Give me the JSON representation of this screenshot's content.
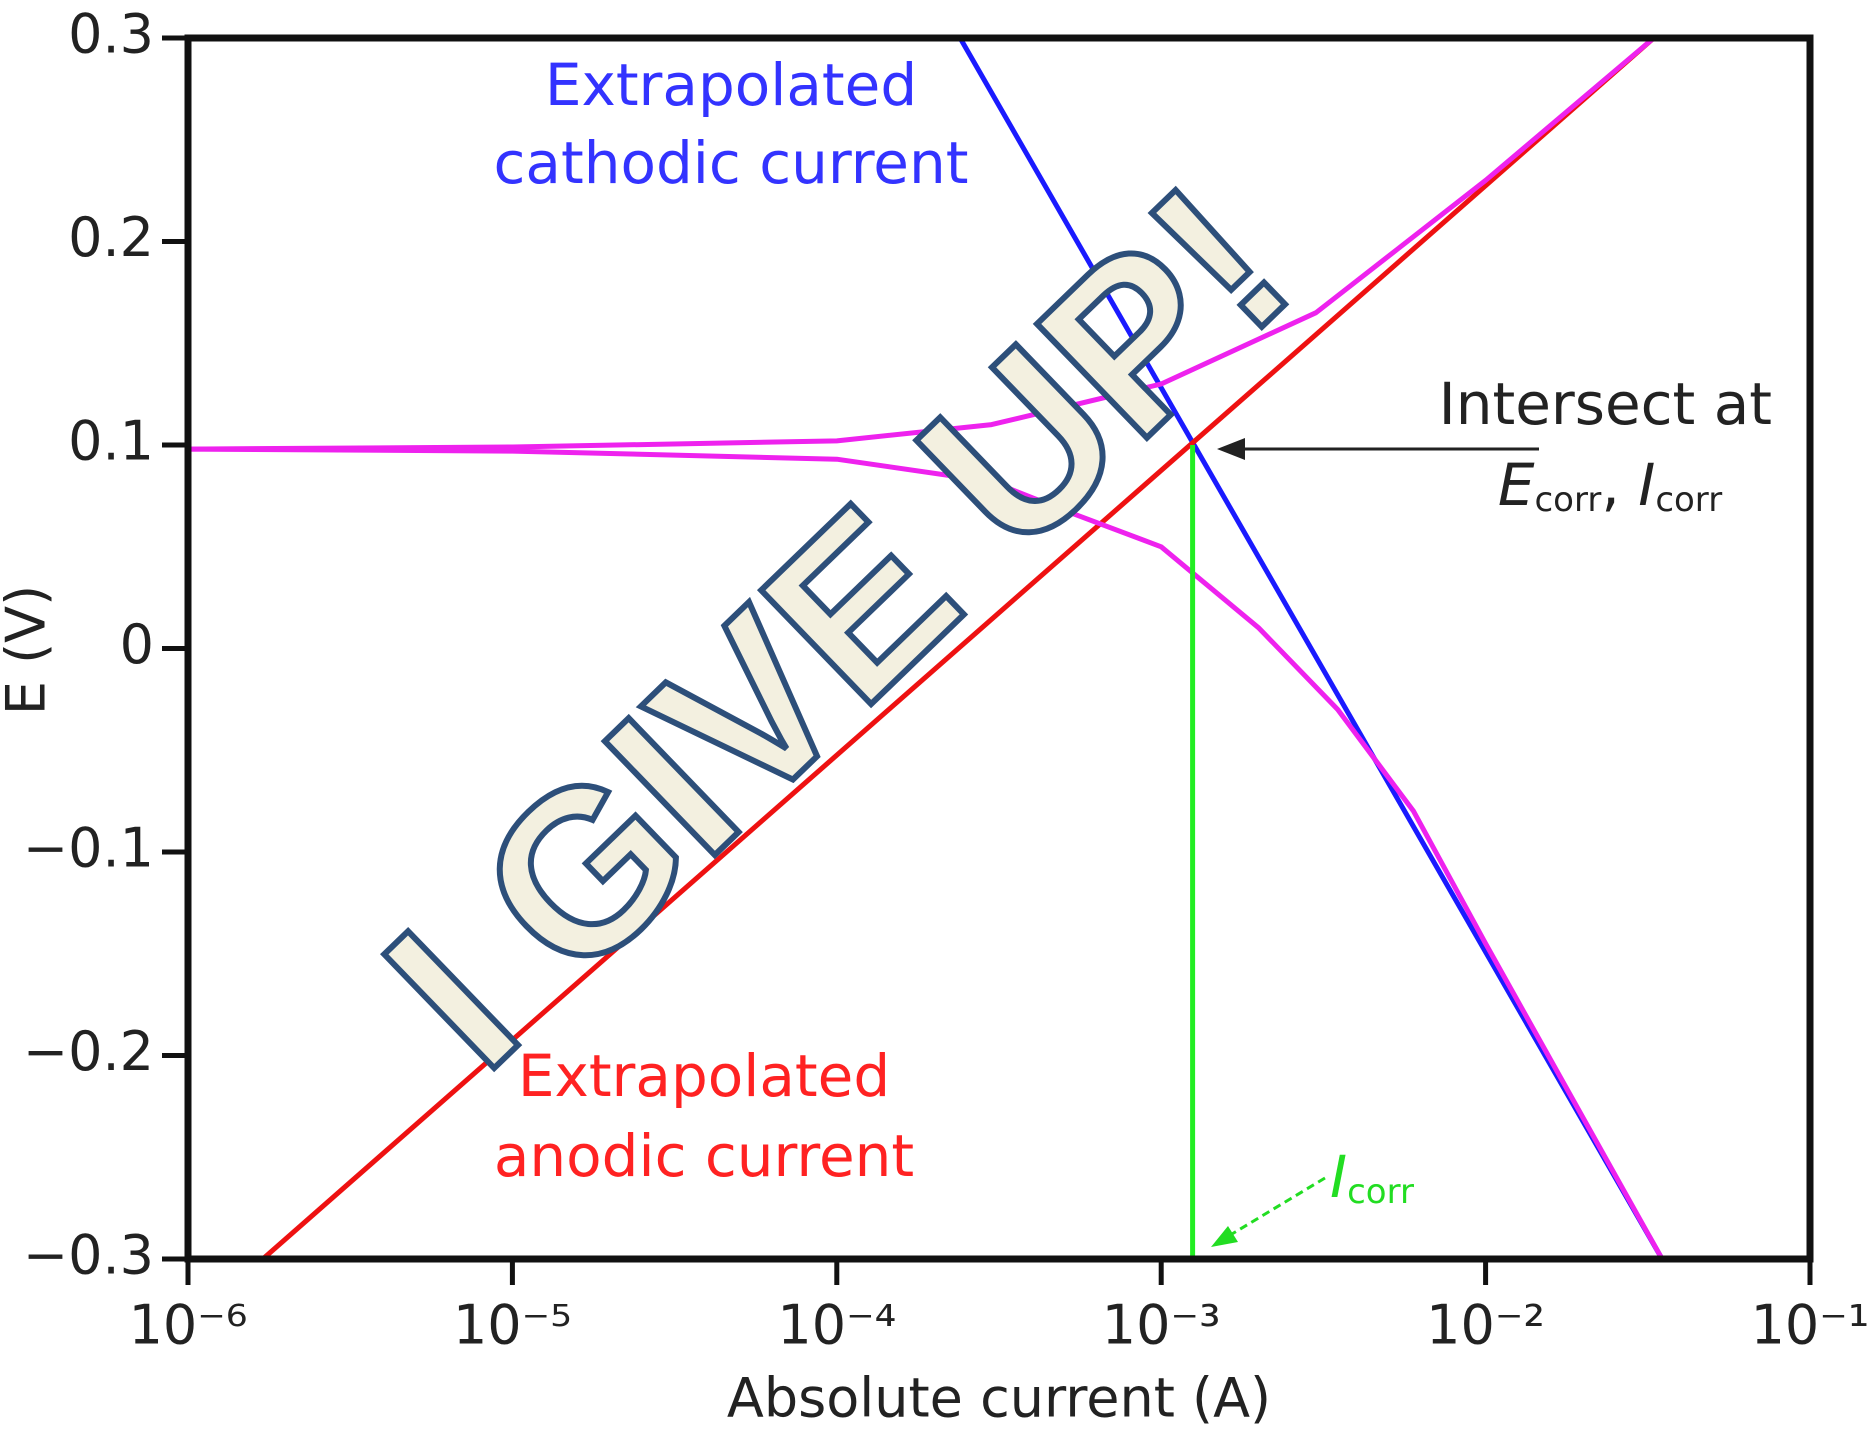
{
  "chart_data": {
    "type": "line",
    "xlabel": "Absolute current (A)",
    "ylabel": "E (V)",
    "xscale": "log",
    "xlim": [
      1e-06,
      0.1
    ],
    "ylim": [
      -0.3,
      0.3
    ],
    "xticks": [
      {
        "value": 1e-06,
        "label": "10⁻⁶"
      },
      {
        "value": 1e-05,
        "label": "10⁻⁵"
      },
      {
        "value": 0.0001,
        "label": "10⁻⁴"
      },
      {
        "value": 0.001,
        "label": "10⁻³"
      },
      {
        "value": 0.01,
        "label": "10⁻²"
      },
      {
        "value": 0.1,
        "label": "10⁻¹"
      }
    ],
    "yticks": [
      {
        "value": -0.3,
        "label": "−0.3"
      },
      {
        "value": -0.2,
        "label": "−0.2"
      },
      {
        "value": -0.1,
        "label": "−0.1"
      },
      0,
      0.1,
      0.2,
      0.3
    ],
    "grid": false,
    "series": [
      {
        "color": "#1a1aff",
        "x": [
          0.00024,
          0.035
        ],
        "values": [
          0.3,
          -0.3
        ]
      },
      {
        "color": "#ee1111",
        "x": [
          1.7e-06,
          0.033
        ],
        "values": [
          -0.3,
          0.3
        ]
      },
      {
        "color": "#ee22ee",
        "x": [
          1e-06,
          1e-05,
          0.0001,
          0.0003,
          0.001,
          0.003,
          0.01,
          0.033
        ],
        "values": [
          0.098,
          0.099,
          0.102,
          0.11,
          0.13,
          0.165,
          0.23,
          0.3
        ]
      },
      {
        "color": "#ee22ee",
        "x": [
          1e-06,
          1e-05,
          0.0001,
          0.0003,
          0.0005,
          0.001,
          0.002,
          0.0035,
          0.006,
          0.01,
          0.035
        ],
        "values": [
          0.098,
          0.097,
          0.093,
          0.082,
          0.068,
          0.05,
          0.01,
          -0.03,
          -0.08,
          -0.145,
          -0.3
        ]
      },
      {
        "color": "#22ee22",
        "x": [
          0.00125,
          0.00125
        ],
        "values": [
          -0.3,
          0.1
        ]
      }
    ],
    "annotations": {
      "cathodic": [
        "Extrapolated",
        "cathodic current"
      ],
      "anodic": [
        "Extrapolated",
        "anodic current"
      ],
      "intersect": {
        "text": "Intersect at",
        "e": "E",
        "e_sub": "corr",
        "sep": ", ",
        "i": "I",
        "i_sub": "corr"
      },
      "icorr": {
        "i": "I",
        "sub": "corr"
      }
    },
    "watermark": "I GIVE UP!"
  }
}
